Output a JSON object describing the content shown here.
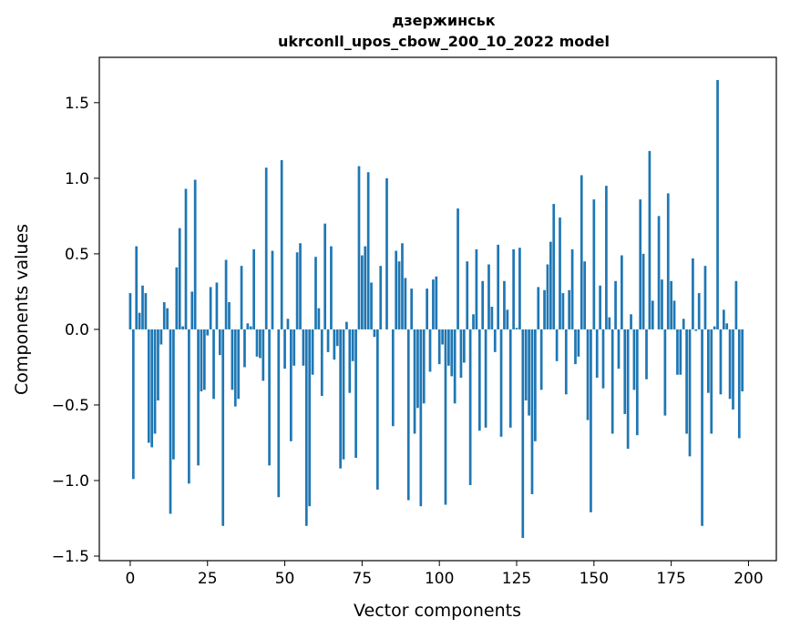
{
  "chart_data": {
    "type": "bar",
    "title_line1": "дзержинськ",
    "title_line2": "ukrconll_upos_cbow_200_10_2022 model",
    "xlabel": "Vector components",
    "ylabel": "Components values",
    "xlim": [
      -10,
      209
    ],
    "ylim": [
      -1.53,
      1.8
    ],
    "xticks": [
      0,
      25,
      50,
      75,
      100,
      125,
      150,
      175,
      200
    ],
    "yticks": [
      -1.5,
      -1.0,
      -0.5,
      0.0,
      0.5,
      1.0,
      1.5
    ],
    "ytick_labels": [
      "−1.5",
      "−1.0",
      "−0.5",
      "0.0",
      "0.5",
      "1.0",
      "1.5"
    ],
    "bar_color": "#1f77b4",
    "values": [
      0.24,
      -0.99,
      0.55,
      0.11,
      0.29,
      0.24,
      -0.75,
      -0.78,
      -0.69,
      -0.47,
      -0.1,
      0.18,
      0.14,
      -1.22,
      -0.86,
      0.41,
      0.67,
      0.02,
      0.93,
      -1.02,
      0.25,
      0.99,
      -0.9,
      -0.41,
      -0.4,
      -0.04,
      0.28,
      -0.46,
      0.31,
      -0.17,
      -1.3,
      0.46,
      0.18,
      -0.4,
      -0.51,
      -0.46,
      0.42,
      -0.25,
      0.04,
      0.02,
      0.53,
      -0.18,
      -0.19,
      -0.34,
      1.07,
      -0.9,
      0.52,
      0.0,
      -1.11,
      1.12,
      -0.26,
      0.07,
      -0.74,
      -0.24,
      0.51,
      0.57,
      -0.24,
      -1.3,
      -1.17,
      -0.3,
      0.48,
      0.14,
      -0.44,
      0.7,
      -0.15,
      0.55,
      -0.2,
      -0.11,
      -0.92,
      -0.86,
      0.05,
      -0.42,
      -0.21,
      -0.85,
      1.08,
      0.49,
      0.55,
      1.04,
      0.31,
      -0.05,
      -1.06,
      0.42,
      0.0,
      1.0,
      0.0,
      -0.64,
      0.52,
      0.45,
      0.57,
      0.34,
      -1.13,
      0.27,
      -0.69,
      -0.52,
      -1.17,
      -0.49,
      0.27,
      -0.28,
      0.33,
      0.35,
      -0.23,
      -0.1,
      -1.16,
      -0.24,
      -0.31,
      -0.49,
      0.8,
      -0.32,
      -0.22,
      0.45,
      -1.03,
      0.1,
      0.53,
      -0.67,
      0.32,
      -0.65,
      0.43,
      0.15,
      -0.15,
      0.56,
      -0.71,
      0.32,
      0.13,
      -0.65,
      0.53,
      0.01,
      0.54,
      -1.38,
      -0.47,
      -0.57,
      -1.09,
      -0.74,
      0.28,
      -0.4,
      0.26,
      0.43,
      0.58,
      0.83,
      -0.21,
      0.74,
      0.24,
      -0.43,
      0.26,
      0.53,
      -0.23,
      -0.18,
      1.02,
      0.45,
      -0.6,
      -1.21,
      0.86,
      -0.32,
      0.29,
      -0.39,
      0.95,
      0.08,
      -0.69,
      0.32,
      -0.26,
      0.49,
      -0.56,
      -0.79,
      0.1,
      -0.4,
      -0.7,
      0.86,
      0.5,
      -0.33,
      1.18,
      0.19,
      0.0,
      0.75,
      0.33,
      -0.57,
      0.9,
      0.32,
      0.19,
      -0.3,
      -0.3,
      0.07,
      -0.69,
      -0.84,
      0.47,
      -0.01,
      0.24,
      -1.3,
      0.42,
      -0.42,
      -0.69,
      0.02,
      1.65,
      -0.43,
      0.13,
      0.04,
      -0.46,
      -0.53,
      0.32,
      -0.72,
      -0.41
    ]
  }
}
